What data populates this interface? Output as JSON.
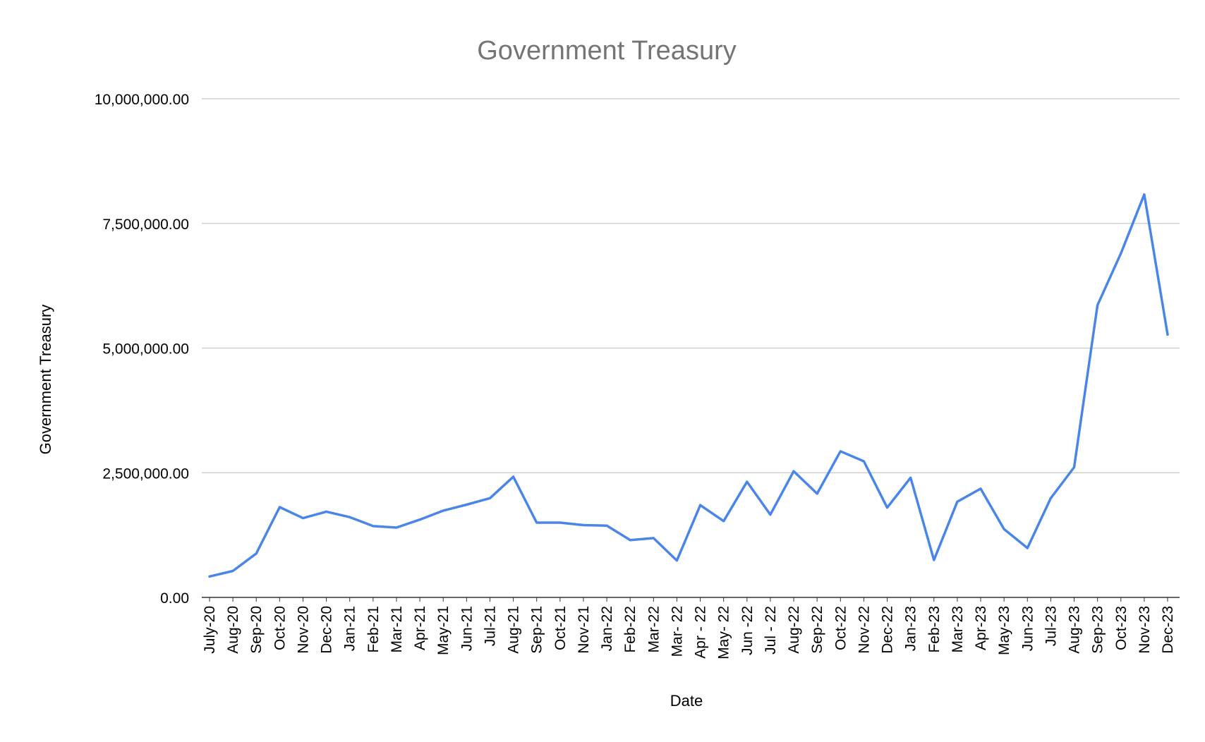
{
  "chart_data": {
    "type": "line",
    "title": "Government Treasury",
    "xlabel": "Date",
    "ylabel": "Government Treasury",
    "ylim": [
      0,
      10000000
    ],
    "yticks": [
      0,
      2500000,
      5000000,
      7500000,
      10000000
    ],
    "ytick_labels": [
      "0.00",
      "2,500,000.00",
      "5,000,000.00",
      "7,500,000.00",
      "10,000,000.00"
    ],
    "grid": true,
    "legend": "none",
    "categories": [
      "July-20",
      "Aug-20",
      "Sep-20",
      "Oct-20",
      "Nov-20",
      "Dec-20",
      "Jan-21",
      "Feb-21",
      "Mar-21",
      "Apr-21",
      "May-21",
      "Jun-21",
      "Jul-21",
      "Aug-21",
      "Sep-21",
      "Oct-21",
      "Nov-21",
      "Jan-22",
      "Feb-22",
      "Mar-22",
      "Mar- 22",
      "Apr - 22",
      "May- 22",
      "Jun -22",
      "Jul - 22",
      "Aug-22",
      "Sep-22",
      "Oct-22",
      "Nov-22",
      "Dec-22",
      "Jan-23",
      "Feb-23",
      "Mar-23",
      "Apr-23",
      "May-23",
      "Jun-23",
      "Jul-23",
      "Aug-23",
      "Sep-23",
      "Oct-23",
      "Nov-23",
      "Dec-23"
    ],
    "series": [
      {
        "color": "#4a86e8",
        "values": [
          420000,
          530000,
          880000,
          1810000,
          1590000,
          1720000,
          1610000,
          1430000,
          1400000,
          1560000,
          1740000,
          1860000,
          1990000,
          2420000,
          1500000,
          1500000,
          1450000,
          1440000,
          1150000,
          1190000,
          740000,
          1850000,
          1530000,
          2320000,
          1660000,
          2530000,
          2080000,
          2930000,
          2730000,
          1800000,
          2400000,
          750000,
          1920000,
          2180000,
          1370000,
          990000,
          1990000,
          2610000,
          5860000,
          6900000,
          8080000,
          5270000
        ]
      }
    ]
  }
}
